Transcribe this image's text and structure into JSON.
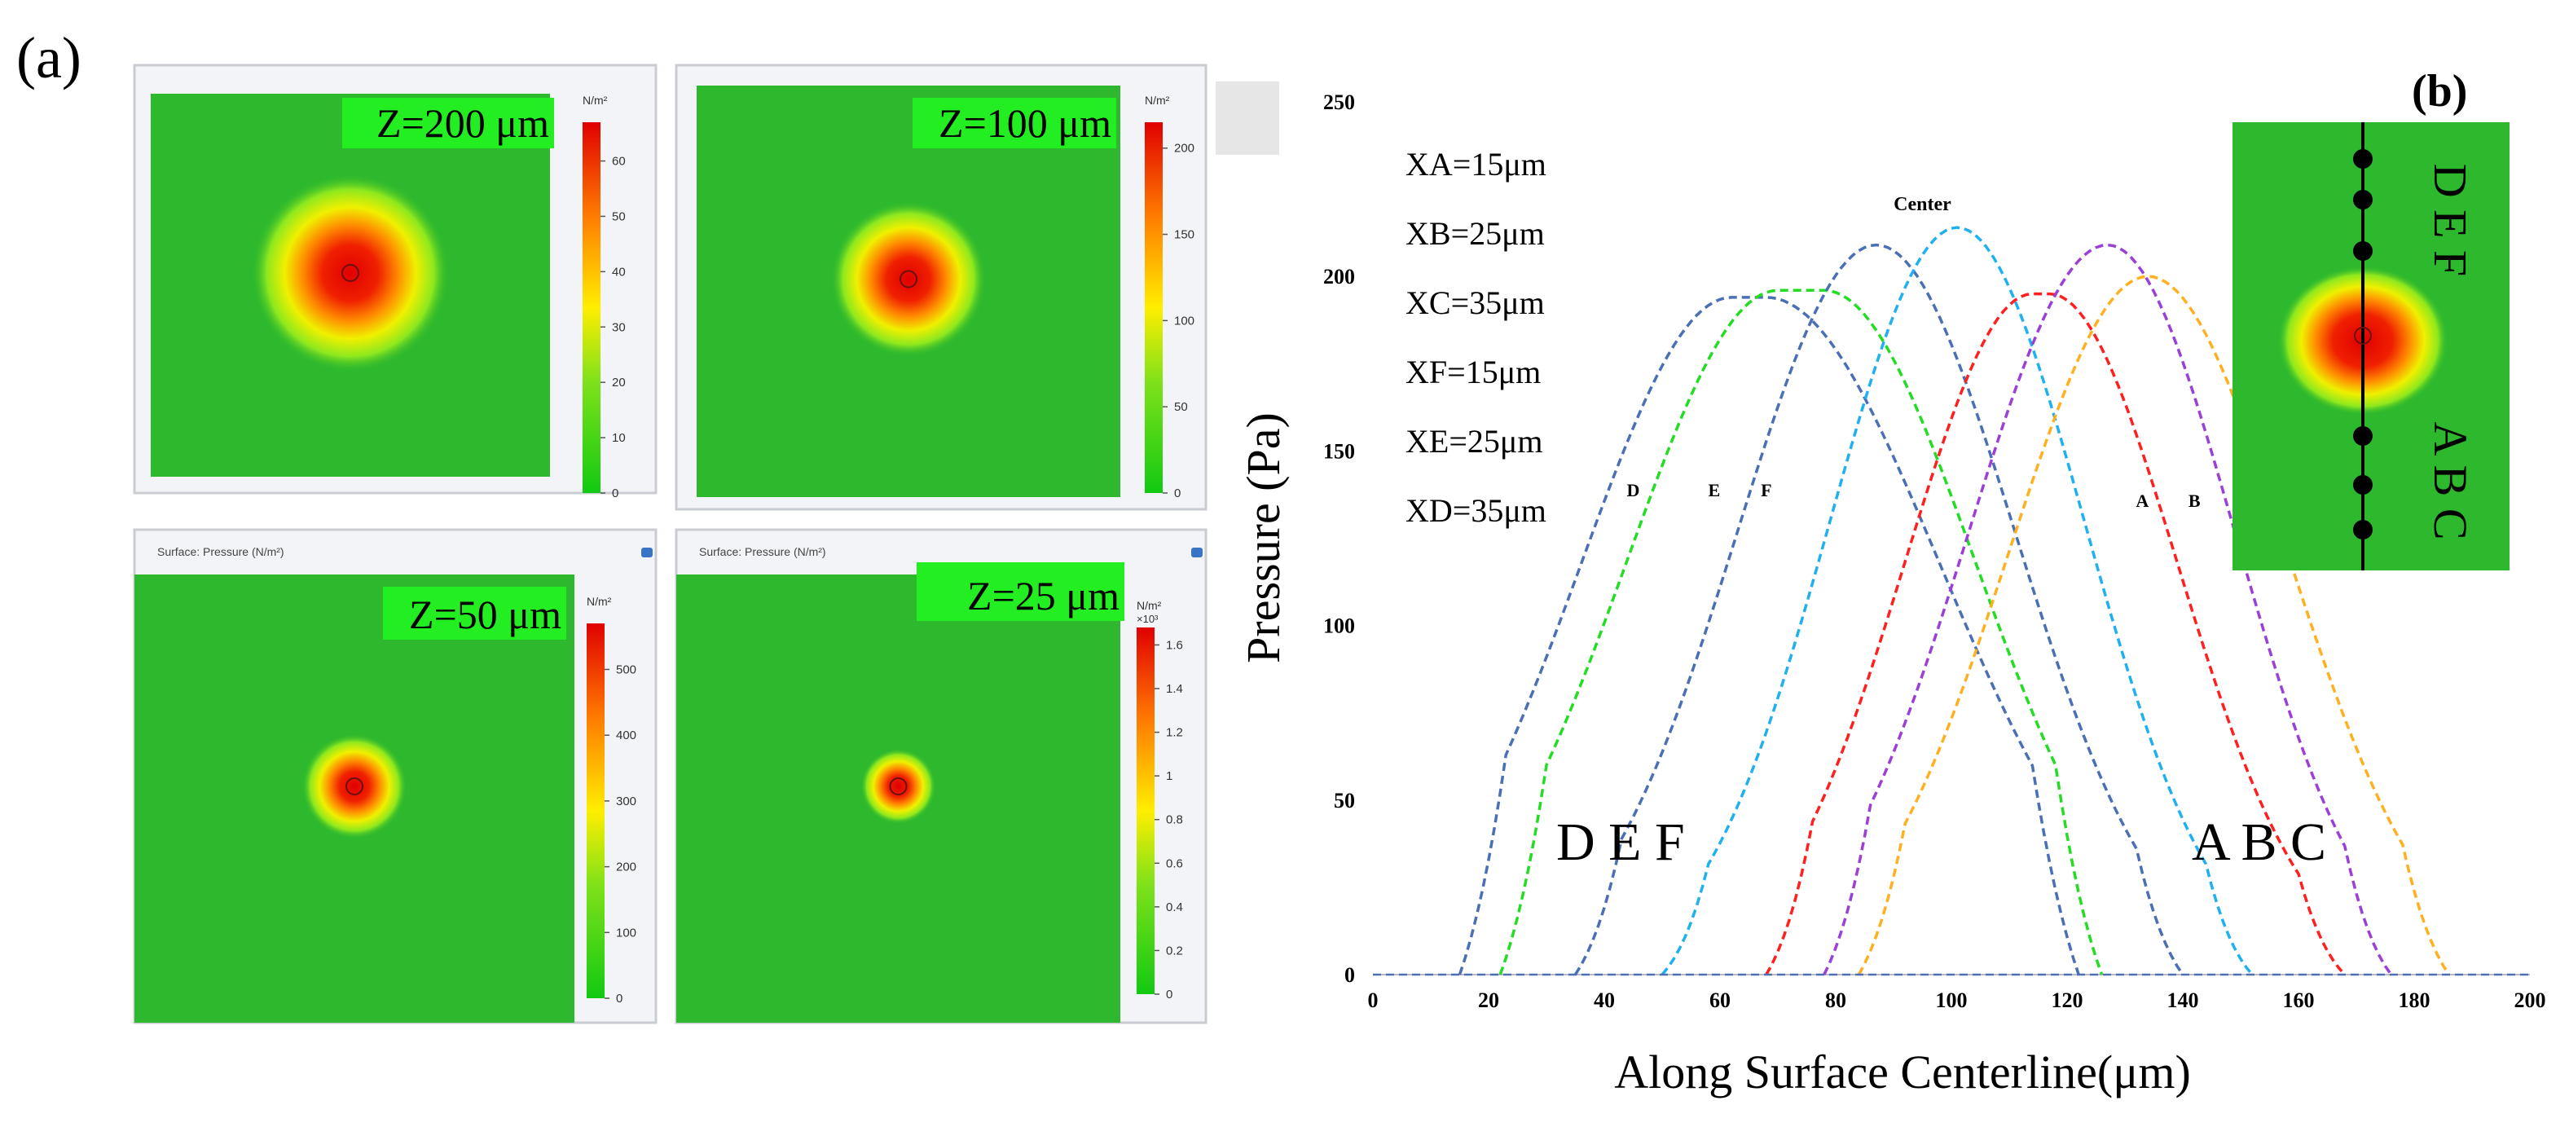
{
  "panel_a": {
    "label": "(a)",
    "caption": "Surface: Pressure (N/m²)",
    "unit": "N/m²",
    "maps": [
      {
        "z_label": "Z=200 μm",
        "show_caption": false,
        "exponent": "",
        "ticks": [
          "60",
          "50",
          "40",
          "30",
          "20",
          "10",
          "0"
        ],
        "tick_values": [
          60,
          50,
          40,
          30,
          20,
          10,
          0
        ],
        "max": 67,
        "spot_radius": 0.26
      },
      {
        "z_label": "Z=100 μm",
        "show_caption": false,
        "exponent": "",
        "ticks": [
          "200",
          "150",
          "100",
          "50",
          "0"
        ],
        "tick_values": [
          200,
          150,
          100,
          50,
          0
        ],
        "max": 215,
        "spot_radius": 0.19
      },
      {
        "z_label": "Z=50 μm",
        "show_caption": true,
        "exponent": "",
        "ticks": [
          "500",
          "400",
          "300",
          "200",
          "100",
          "0"
        ],
        "tick_values": [
          500,
          400,
          300,
          200,
          100,
          0
        ],
        "max": 570,
        "spot_radius": 0.12
      },
      {
        "z_label": "Z=25 μm",
        "show_caption": true,
        "exponent": "×10³",
        "ticks": [
          "1.6",
          "1.4",
          "1.2",
          "1",
          "0.8",
          "0.6",
          "0.4",
          "0.2",
          "0"
        ],
        "tick_values": [
          1.6,
          1.4,
          1.2,
          1.0,
          0.8,
          0.6,
          0.4,
          0.2,
          0
        ],
        "max": 1.68,
        "spot_radius": 0.085
      }
    ]
  },
  "chart_data": {
    "type": "line",
    "panel_label": "(b)",
    "title": "",
    "xlabel": "Along Surface Centerline(μm)",
    "ylabel": "Pressure (Pa)",
    "xlim": [
      0,
      200
    ],
    "ylim": [
      0,
      250
    ],
    "xticks": [
      0,
      20,
      40,
      60,
      80,
      100,
      120,
      140,
      160,
      180,
      200
    ],
    "yticks": [
      0,
      50,
      100,
      150,
      200,
      250
    ],
    "line_style": "dashed",
    "legend_entries": [
      "XA=15μm",
      "XB=25μm",
      "XC=35μm",
      "XF=15μm",
      "XE=25μm",
      "XD=35μm"
    ],
    "series": [
      {
        "name": "D",
        "color": "#4a6fb5",
        "peak_x": 65,
        "peak_y": 194,
        "plateau_start": 62,
        "plateau_end": 68,
        "spread_left": 26,
        "spread_right": 30,
        "x_start": 15,
        "x_end": 122
      },
      {
        "name": "E",
        "color": "#22dd22",
        "peak_x": 74,
        "peak_y": 196,
        "plateau_start": 70,
        "plateau_end": 78,
        "spread_left": 26,
        "spread_right": 26,
        "x_start": 22,
        "x_end": 126
      },
      {
        "name": "F",
        "color": "#4a6fb5",
        "peak_x": 87,
        "peak_y": 209,
        "plateau_start": 87,
        "plateau_end": 87,
        "spread_left": 24,
        "spread_right": 24,
        "x_start": 35,
        "x_end": 140
      },
      {
        "name": "Center",
        "color": "#1fb0f0",
        "peak_x": 101,
        "peak_y": 214,
        "plateau_start": 101,
        "plateau_end": 101,
        "spread_left": 22,
        "spread_right": 22,
        "x_start": 50,
        "x_end": 152
      },
      {
        "name": "A",
        "color": "#ff1f1f",
        "peak_x": 115,
        "peak_y": 195,
        "plateau_start": 114,
        "plateau_end": 117,
        "spread_left": 22,
        "spread_right": 22,
        "x_start": 68,
        "x_end": 168
      },
      {
        "name": "B",
        "color": "#9b3fd6",
        "peak_x": 127,
        "peak_y": 209,
        "plateau_start": 127,
        "plateau_end": 127,
        "spread_left": 24,
        "spread_right": 22,
        "x_start": 78,
        "x_end": 176
      },
      {
        "name": "C",
        "color": "#ffb020",
        "peak_x": 134,
        "peak_y": 200,
        "plateau_start": 134,
        "plateau_end": 134,
        "spread_left": 24,
        "spread_right": 24,
        "x_start": 84,
        "x_end": 186
      }
    ],
    "annotations": {
      "center": "Center",
      "small_D": "D",
      "small_E": "E",
      "small_F": "F",
      "small_A": "A",
      "small_B": "B",
      "group_left": "D E F",
      "group_right": "A B C"
    },
    "inset": {
      "top_label": "D E F",
      "bottom_label": "A B C"
    }
  }
}
